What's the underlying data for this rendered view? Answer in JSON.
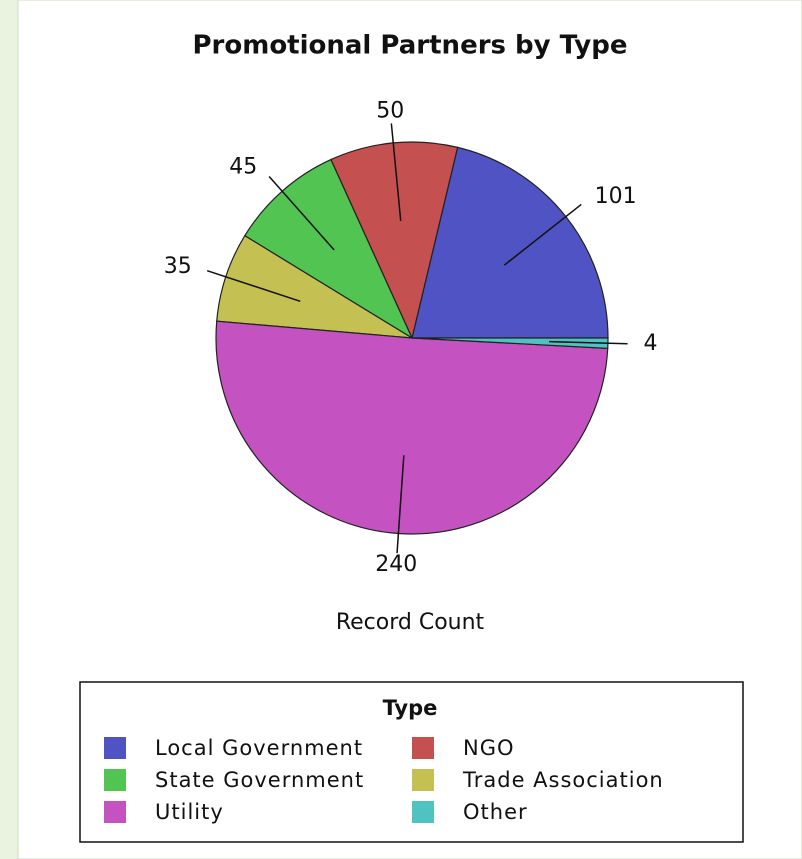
{
  "chart_data": {
    "type": "pie",
    "title": "Promotional Partners by Type",
    "value_label": "Record Count",
    "legend_title": "Type",
    "categories": [
      "Local Government",
      "NGO",
      "State Government",
      "Trade Association",
      "Utility",
      "Other"
    ],
    "values": [
      101,
      50,
      45,
      35,
      240,
      4
    ],
    "colors": [
      "#5053c4",
      "#c4504f",
      "#52c452",
      "#c4c152",
      "#c452c0",
      "#4fc2c4"
    ],
    "start_angle": 0,
    "direction": "counterclockwise",
    "legend": "bottom"
  }
}
